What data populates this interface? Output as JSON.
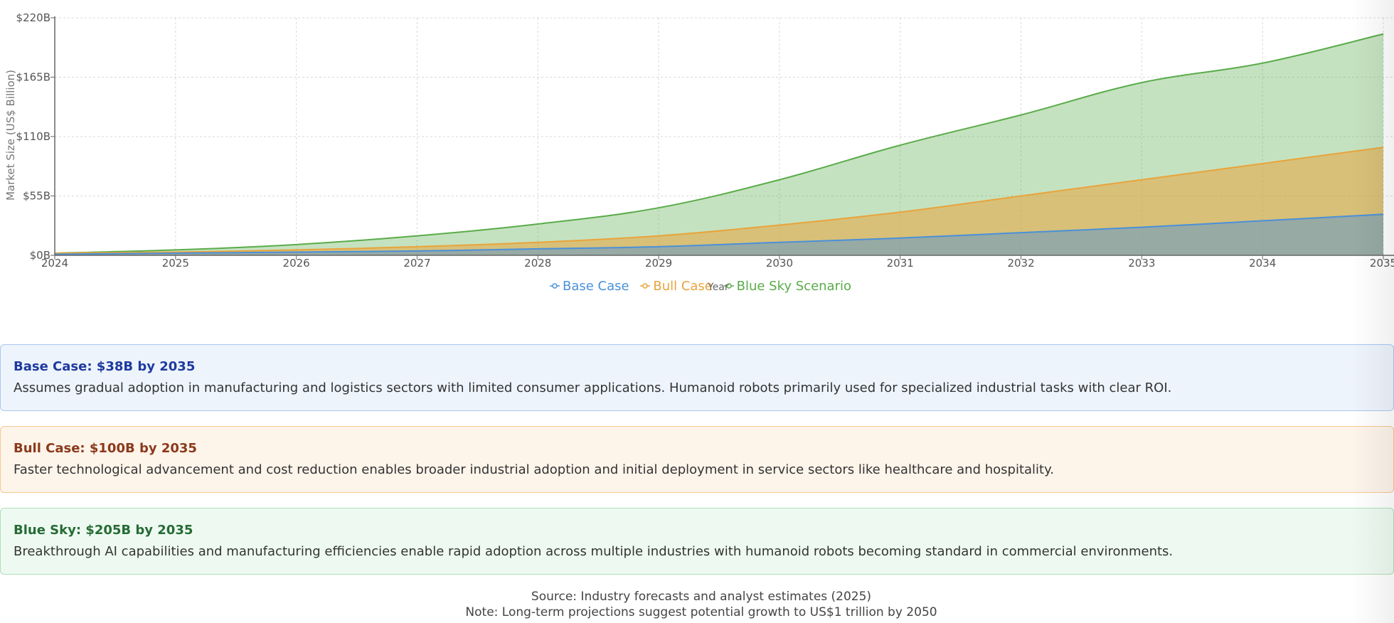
{
  "chart_data": {
    "type": "area",
    "title": "",
    "xlabel": "Year",
    "ylabel": "Market Size (US$ Billion)",
    "x": [
      "2024",
      "2025",
      "2026",
      "2027",
      "2028",
      "2029",
      "2030",
      "2031",
      "2032",
      "2033",
      "2034",
      "2035"
    ],
    "ylim": [
      0,
      220
    ],
    "yticks": [
      {
        "value": 0,
        "label": "$0B"
      },
      {
        "value": 55,
        "label": "$55B"
      },
      {
        "value": 110,
        "label": "$110B"
      },
      {
        "value": 165,
        "label": "$165B"
      },
      {
        "value": 220,
        "label": "$220B"
      }
    ],
    "grid": true,
    "legend_position": "bottom",
    "series": [
      {
        "name": "Base Case",
        "color": "#4a90d9",
        "values": [
          1,
          2,
          3,
          4,
          6,
          8,
          12,
          16,
          21,
          26,
          32,
          38
        ]
      },
      {
        "name": "Bull Case",
        "color": "#e8a43c",
        "values": [
          2,
          3,
          5,
          8,
          12,
          18,
          28,
          40,
          55,
          70,
          85,
          100
        ]
      },
      {
        "name": "Blue Sky Scenario",
        "color": "#5aac4a",
        "values": [
          2,
          5,
          10,
          18,
          29,
          44,
          70,
          102,
          130,
          160,
          178,
          205
        ]
      }
    ]
  },
  "cards": {
    "base": {
      "title": "Base Case: $38B by 2035",
      "body": "Assumes gradual adoption in manufacturing and logistics sectors with limited consumer applications. Humanoid robots primarily used for specialized industrial tasks with clear ROI.",
      "title_color": "#1e3a9e"
    },
    "bull": {
      "title": "Bull Case: $100B by 2035",
      "body": "Faster technological advancement and cost reduction enables broader industrial adoption and initial deployment in service sectors like healthcare and hospitality.",
      "title_color": "#8a3a1a"
    },
    "sky": {
      "title": "Blue Sky: $205B by 2035",
      "body": "Breakthrough AI capabilities and manufacturing efficiencies enable rapid adoption across multiple industries with humanoid robots becoming standard in commercial environments.",
      "title_color": "#256b35"
    }
  },
  "footer": {
    "source": "Source: Industry forecasts and analyst estimates (2025)",
    "note": "Note: Long-term projections suggest potential growth to US$1 trillion by 2050"
  }
}
